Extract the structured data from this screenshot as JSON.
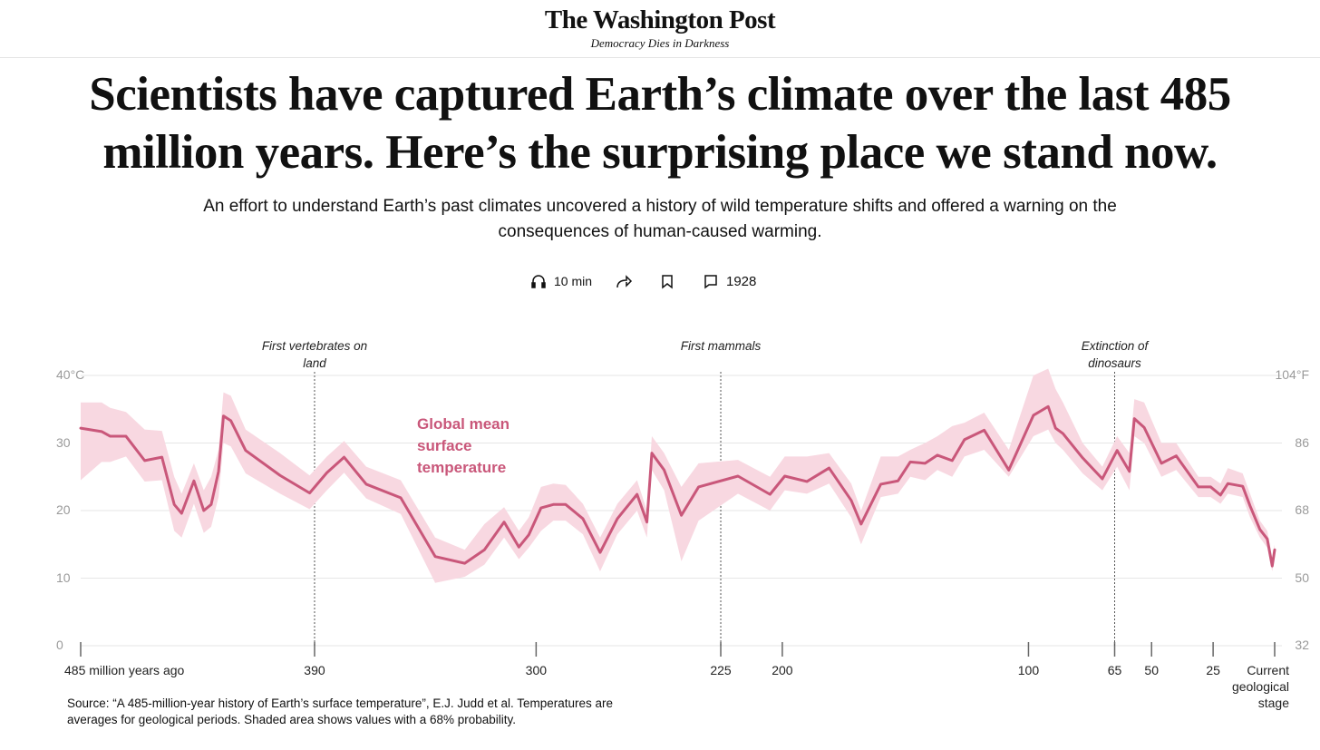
{
  "masthead": {
    "title": "The Washington Post",
    "tagline": "Democracy Dies in Darkness"
  },
  "headline": "Scientists have captured Earth’s climate over the last 485 million years. Here’s the surprising place we stand now.",
  "subtitle": "An effort to understand Earth’s past climates uncovered a history of wild temperature shifts and offered a warning on the consequences of human-caused warming.",
  "toolbar": {
    "listen": "10 min",
    "comments": "1928"
  },
  "chart_data": {
    "type": "line",
    "series_label": "Global mean surface temperature",
    "color": "#c9577a",
    "band_color": "#f8d8e1",
    "xlim": [
      485,
      0
    ],
    "ylim": [
      0,
      40
    ],
    "y2lim": [
      32,
      104
    ],
    "xticks": [
      {
        "value": 485,
        "label": "485 million years ago"
      },
      390,
      300,
      225,
      200,
      100,
      65,
      50,
      25,
      {
        "value": 0,
        "label": "Current geological stage"
      }
    ],
    "yticks": [
      0,
      10,
      20,
      30,
      {
        "value": 40,
        "label": "40°C"
      }
    ],
    "y2ticks": [
      32,
      50,
      68,
      86,
      {
        "value": 104,
        "label": "104°F"
      }
    ],
    "grid": true,
    "annotations": [
      {
        "x": 390,
        "text": "First vertebrates on land"
      },
      {
        "x": 225,
        "text": "First mammals"
      },
      {
        "x": 65,
        "text": "Extinction of dinosaurs"
      }
    ],
    "x": [
      485,
      476.5,
      473,
      466.6,
      459,
      452,
      447,
      444,
      439,
      435,
      432,
      429,
      427,
      424,
      418,
      404,
      392,
      385,
      378,
      369,
      355,
      341,
      329,
      321,
      313,
      307,
      303,
      298,
      293,
      288,
      281,
      274,
      267,
      259,
      255,
      253,
      248,
      241,
      234,
      218,
      205,
      199,
      190,
      181,
      172,
      168,
      160,
      153,
      148,
      142,
      137,
      131,
      126,
      118,
      108,
      98,
      92,
      89,
      86,
      78,
      70,
      64,
      59,
      57,
      53,
      46,
      40,
      31,
      26,
      22,
      19,
      13,
      10,
      6,
      3,
      1,
      0
    ],
    "values": [
      32.2,
      31.7,
      31.0,
      31.0,
      27.4,
      27.9,
      20.9,
      19.6,
      24.4,
      20.0,
      20.9,
      25.8,
      34.0,
      33.3,
      28.9,
      25.2,
      22.6,
      25.6,
      27.9,
      23.9,
      21.9,
      13.2,
      12.2,
      14.2,
      18.3,
      14.6,
      16.4,
      20.4,
      20.9,
      20.9,
      18.8,
      13.8,
      18.8,
      22.4,
      18.3,
      28.5,
      26.0,
      19.3,
      23.5,
      25.1,
      22.4,
      25.1,
      24.3,
      26.3,
      21.5,
      18.0,
      23.9,
      24.4,
      27.2,
      27.0,
      28.2,
      27.4,
      30.5,
      31.9,
      26.0,
      34.1,
      35.4,
      32.2,
      31.4,
      27.8,
      24.7,
      28.9,
      25.8,
      33.6,
      32.3,
      27.0,
      28.1,
      23.5,
      23.5,
      22.3,
      24.0,
      23.6,
      20.7,
      17.2,
      15.8,
      11.8,
      14.2
    ],
    "band_upper": [
      36,
      36,
      35.2,
      34.6,
      32,
      31.8,
      25,
      22.5,
      27,
      23,
      25,
      29,
      37.5,
      37,
      32,
      28.5,
      25.2,
      28,
      30.3,
      26.5,
      24.5,
      16,
      14.2,
      18,
      20.5,
      17,
      19,
      23.5,
      24,
      23.8,
      21,
      16,
      21,
      24.5,
      20,
      31,
      28.5,
      23.5,
      27,
      27.5,
      25,
      28,
      28,
      28.5,
      24,
      20,
      28,
      28,
      29,
      30,
      31,
      32.5,
      33,
      34.5,
      29,
      40,
      41,
      38,
      36,
      30,
      26.5,
      31,
      28.5,
      36.5,
      36,
      30,
      30,
      25,
      25,
      24,
      26.3,
      25.5,
      22.5,
      18.5,
      17,
      13,
      15
    ],
    "band_lower": [
      24.5,
      27.2,
      27.2,
      28,
      24.3,
      24.5,
      17,
      16,
      21,
      16.7,
      17.6,
      22,
      30,
      29.5,
      25.5,
      22.5,
      20.2,
      23,
      25.6,
      21.8,
      19.5,
      9.3,
      10.2,
      12,
      16,
      12.8,
      14.5,
      17,
      18.5,
      18.5,
      16.5,
      11,
      16.5,
      20,
      16,
      26,
      23,
      12.5,
      18.5,
      22.5,
      20,
      23,
      22.5,
      24,
      19,
      15,
      22,
      22.5,
      25,
      24.5,
      26,
      25,
      28,
      29,
      25,
      31,
      32,
      30,
      29,
      25.5,
      23,
      26.5,
      23,
      31,
      30,
      25,
      26,
      22,
      22,
      21,
      22.5,
      22,
      19,
      16,
      14.5,
      11,
      13
    ]
  },
  "source": "Source: “A 485-million-year history of Earth’s surface temperature”, E.J. Judd et al. Temperatures are averages for geological periods. Shaded area shows values with a 68% probability."
}
